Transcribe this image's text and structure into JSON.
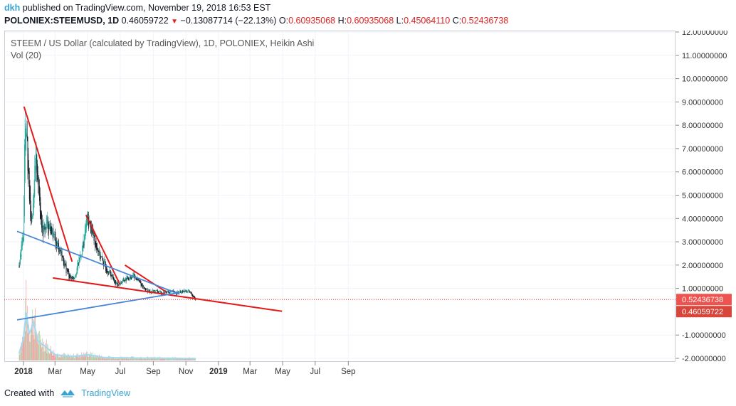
{
  "header": {
    "user": "dkh",
    "published_text": "published on TradingView.com, November 19, 2018 16:53 EST",
    "symbol": "POLONIEX:STEEMUSD, 1D",
    "last": "0.46059722",
    "change": "−0.13087714 (−22.13%)",
    "o_label": "O:",
    "o_value": "0.60935068",
    "h_label": "H:",
    "h_value": "0.60935068",
    "l_label": "L:",
    "l_value": "0.45064110",
    "c_label": "C:",
    "c_value": "0.52436738"
  },
  "footer": {
    "created_with": "Created with",
    "brand": "TradingView"
  },
  "colors": {
    "up": "#26a69a",
    "down": "#131722",
    "red_line": "#e31a1a",
    "blue_line": "#4a86d8",
    "vol_up": "#a5d6a7",
    "vol_down": "#ef9a9a",
    "vol_ma": "#a6d9ef",
    "badge_close": "#ef5350",
    "badge_low": "#d8463b"
  },
  "chart_data": {
    "type": "candlestick",
    "title": "STEEM / US Dollar (calculated by TradingView), 1D, POLONIEX, Heikin Ashi",
    "indicator": "Vol (20)",
    "ylim": [
      -2,
      12
    ],
    "y_ticks": [
      "12.00000000",
      "11.00000000",
      "10.00000000",
      "9.00000000",
      "8.00000000",
      "7.00000000",
      "6.00000000",
      "5.00000000",
      "4.00000000",
      "3.00000000",
      "2.00000000",
      "1.00000000",
      "-1.00000000",
      "-2.00000000"
    ],
    "x_ticks": [
      "2018",
      "Mar",
      "May",
      "Jul",
      "Sep",
      "Nov",
      "2019",
      "Mar",
      "May",
      "Jul",
      "Sep"
    ],
    "price_labels": [
      {
        "value": 0.52436738,
        "label": "0.52436738"
      },
      {
        "value": 0.46059722,
        "label": "0.46059722"
      }
    ],
    "price_path": [
      {
        "date": "2017-12-24",
        "value": 2.0
      },
      {
        "date": "2017-12-28",
        "value": 2.8
      },
      {
        "date": "2018-01-01",
        "value": 3.2
      },
      {
        "date": "2018-01-04",
        "value": 8.4
      },
      {
        "date": "2018-01-08",
        "value": 7.0
      },
      {
        "date": "2018-01-12",
        "value": 5.0
      },
      {
        "date": "2018-01-16",
        "value": 3.8
      },
      {
        "date": "2018-01-20",
        "value": 5.2
      },
      {
        "date": "2018-01-25",
        "value": 6.6
      },
      {
        "date": "2018-01-30",
        "value": 5.0
      },
      {
        "date": "2018-02-06",
        "value": 3.4
      },
      {
        "date": "2018-02-14",
        "value": 3.8
      },
      {
        "date": "2018-02-22",
        "value": 3.5
      },
      {
        "date": "2018-03-01",
        "value": 3.0
      },
      {
        "date": "2018-03-10",
        "value": 2.7
      },
      {
        "date": "2018-03-20",
        "value": 1.9
      },
      {
        "date": "2018-03-30",
        "value": 1.45
      },
      {
        "date": "2018-04-06",
        "value": 1.5
      },
      {
        "date": "2018-04-14",
        "value": 2.1
      },
      {
        "date": "2018-04-22",
        "value": 2.8
      },
      {
        "date": "2018-04-30",
        "value": 4.0
      },
      {
        "date": "2018-05-06",
        "value": 3.7
      },
      {
        "date": "2018-05-14",
        "value": 3.1
      },
      {
        "date": "2018-05-24",
        "value": 2.4
      },
      {
        "date": "2018-06-04",
        "value": 1.9
      },
      {
        "date": "2018-06-15",
        "value": 1.55
      },
      {
        "date": "2018-06-25",
        "value": 1.15
      },
      {
        "date": "2018-07-05",
        "value": 1.3
      },
      {
        "date": "2018-07-15",
        "value": 1.45
      },
      {
        "date": "2018-07-25",
        "value": 1.55
      },
      {
        "date": "2018-08-05",
        "value": 1.3
      },
      {
        "date": "2018-08-15",
        "value": 1.0
      },
      {
        "date": "2018-08-25",
        "value": 0.85
      },
      {
        "date": "2018-09-05",
        "value": 0.9
      },
      {
        "date": "2018-09-15",
        "value": 0.8
      },
      {
        "date": "2018-09-25",
        "value": 0.85
      },
      {
        "date": "2018-10-05",
        "value": 0.85
      },
      {
        "date": "2018-10-15",
        "value": 0.82
      },
      {
        "date": "2018-10-25",
        "value": 0.85
      },
      {
        "date": "2018-11-05",
        "value": 0.88
      },
      {
        "date": "2018-11-12",
        "value": 0.75
      },
      {
        "date": "2018-11-19",
        "value": 0.52
      }
    ],
    "volume_path": [
      {
        "date": "2017-12-24",
        "value": 0.15
      },
      {
        "date": "2018-01-01",
        "value": 0.45
      },
      {
        "date": "2018-01-06",
        "value": 1.0
      },
      {
        "date": "2018-01-12",
        "value": 0.55
      },
      {
        "date": "2018-01-20",
        "value": 0.8
      },
      {
        "date": "2018-01-28",
        "value": 0.4
      },
      {
        "date": "2018-02-10",
        "value": 0.3
      },
      {
        "date": "2018-03-01",
        "value": 0.12
      },
      {
        "date": "2018-04-01",
        "value": 0.08
      },
      {
        "date": "2018-05-01",
        "value": 0.12
      },
      {
        "date": "2018-06-01",
        "value": 0.06
      },
      {
        "date": "2018-08-01",
        "value": 0.05
      },
      {
        "date": "2018-11-19",
        "value": 0.04
      }
    ],
    "trendlines": [
      {
        "color": "red",
        "from": {
          "date": "2018-01-02",
          "value": 8.8
        },
        "to": {
          "date": "2018-04-02",
          "value": 2.15
        }
      },
      {
        "color": "red",
        "from": {
          "date": "2018-04-28",
          "value": 4.15
        },
        "to": {
          "date": "2018-06-30",
          "value": 1.2
        }
      },
      {
        "color": "red",
        "from": {
          "date": "2018-07-10",
          "value": 2.0
        },
        "to": {
          "date": "2018-09-25",
          "value": 0.85
        }
      },
      {
        "color": "red",
        "from": {
          "date": "2018-02-25",
          "value": 1.45
        },
        "to": {
          "date": "2019-04-30",
          "value": 0.02
        }
      },
      {
        "color": "blue",
        "from": {
          "date": "2017-12-20",
          "value": 3.45
        },
        "to": {
          "date": "2018-10-20",
          "value": 0.75
        }
      },
      {
        "color": "blue",
        "from": {
          "date": "2017-12-20",
          "value": -0.35
        },
        "to": {
          "date": "2018-10-20",
          "value": 0.82
        }
      }
    ]
  }
}
